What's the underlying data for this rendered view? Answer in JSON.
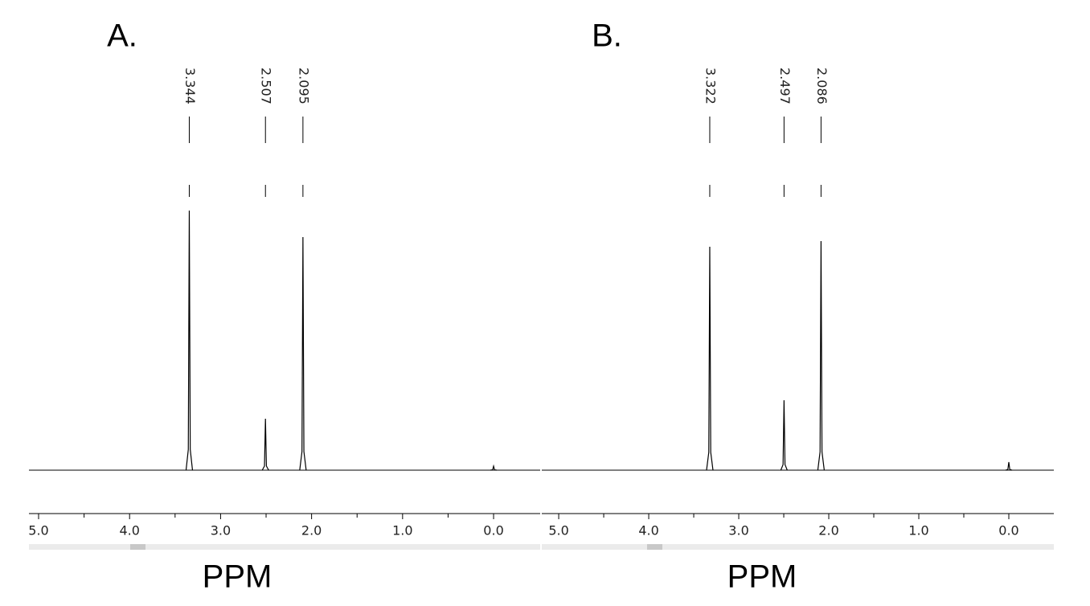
{
  "chart_data": [
    {
      "type": "spectrum",
      "title": "A.",
      "xlabel": "PPM",
      "xlim": [
        5.106,
        -0.512
      ],
      "xticks": [
        {
          "value": 5,
          "label": "5.0"
        },
        {
          "value": 4,
          "label": "4.0"
        },
        {
          "value": 3,
          "label": "3.0"
        },
        {
          "value": 2,
          "label": "2.0"
        },
        {
          "value": 1,
          "label": "1.0"
        },
        {
          "value": 0,
          "label": "0.0"
        }
      ],
      "xminor_ticks": [
        4.5,
        3.5,
        2.5,
        1.5,
        0.5
      ],
      "ylim": [
        0,
        400
      ],
      "series": [
        {
          "color": "#000000",
          "x": [
            3.344,
            2.507,
            2.095
          ],
          "values": [
            323,
            64,
            290
          ],
          "label_peaks": true
        },
        {
          "color": "#000000",
          "x": [
            0.0
          ],
          "values": [
            5
          ],
          "label_peaks": false
        }
      ]
    },
    {
      "type": "spectrum",
      "title": "B.",
      "xlabel": "PPM",
      "xlim": [
        5.188,
        -0.5
      ],
      "xticks": [
        {
          "value": 5,
          "label": "5.0"
        },
        {
          "value": 4,
          "label": "4.0"
        },
        {
          "value": 3,
          "label": "3.0"
        },
        {
          "value": 2,
          "label": "2.0"
        },
        {
          "value": 1,
          "label": "1.0"
        },
        {
          "value": 0,
          "label": "0.0"
        }
      ],
      "xminor_ticks": [
        4.5,
        3.5,
        2.5,
        1.5,
        0.5
      ],
      "ylim": [
        0,
        400
      ],
      "series": [
        {
          "color": "#000000",
          "x": [
            3.322,
            2.497,
            2.086
          ],
          "values": [
            278,
            87,
            285
          ],
          "label_peaks": true
        },
        {
          "color": "#000000",
          "x": [
            0.0
          ],
          "values": [
            10
          ],
          "label_peaks": false
        }
      ]
    }
  ]
}
